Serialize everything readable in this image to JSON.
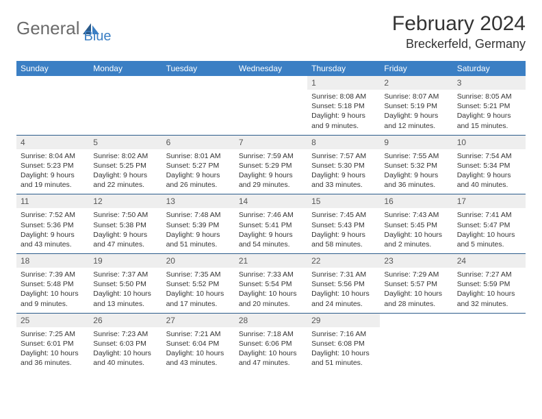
{
  "logo": {
    "part1": "General",
    "part2": "Blue"
  },
  "title": "February 2024",
  "location": "Breckerfeld, Germany",
  "colors": {
    "header_bg": "#3b7fc4",
    "header_text": "#ffffff",
    "daynum_bg": "#eeeeee",
    "row_border": "#2a5a8a",
    "body_text": "#333333",
    "logo_gray": "#6b6b6b",
    "logo_blue": "#3b7fc4",
    "page_bg": "#ffffff"
  },
  "typography": {
    "title_fontsize": 30,
    "location_fontsize": 18,
    "weekday_fontsize": 12,
    "daynum_fontsize": 12,
    "body_fontsize": 10.5
  },
  "weekdays": [
    "Sunday",
    "Monday",
    "Tuesday",
    "Wednesday",
    "Thursday",
    "Friday",
    "Saturday"
  ],
  "weeks": [
    [
      {
        "empty": true
      },
      {
        "empty": true
      },
      {
        "empty": true
      },
      {
        "empty": true
      },
      {
        "day": "1",
        "sunrise": "8:08 AM",
        "sunset": "5:18 PM",
        "daylight": "9 hours and 9 minutes."
      },
      {
        "day": "2",
        "sunrise": "8:07 AM",
        "sunset": "5:19 PM",
        "daylight": "9 hours and 12 minutes."
      },
      {
        "day": "3",
        "sunrise": "8:05 AM",
        "sunset": "5:21 PM",
        "daylight": "9 hours and 15 minutes."
      }
    ],
    [
      {
        "day": "4",
        "sunrise": "8:04 AM",
        "sunset": "5:23 PM",
        "daylight": "9 hours and 19 minutes."
      },
      {
        "day": "5",
        "sunrise": "8:02 AM",
        "sunset": "5:25 PM",
        "daylight": "9 hours and 22 minutes."
      },
      {
        "day": "6",
        "sunrise": "8:01 AM",
        "sunset": "5:27 PM",
        "daylight": "9 hours and 26 minutes."
      },
      {
        "day": "7",
        "sunrise": "7:59 AM",
        "sunset": "5:29 PM",
        "daylight": "9 hours and 29 minutes."
      },
      {
        "day": "8",
        "sunrise": "7:57 AM",
        "sunset": "5:30 PM",
        "daylight": "9 hours and 33 minutes."
      },
      {
        "day": "9",
        "sunrise": "7:55 AM",
        "sunset": "5:32 PM",
        "daylight": "9 hours and 36 minutes."
      },
      {
        "day": "10",
        "sunrise": "7:54 AM",
        "sunset": "5:34 PM",
        "daylight": "9 hours and 40 minutes."
      }
    ],
    [
      {
        "day": "11",
        "sunrise": "7:52 AM",
        "sunset": "5:36 PM",
        "daylight": "9 hours and 43 minutes."
      },
      {
        "day": "12",
        "sunrise": "7:50 AM",
        "sunset": "5:38 PM",
        "daylight": "9 hours and 47 minutes."
      },
      {
        "day": "13",
        "sunrise": "7:48 AM",
        "sunset": "5:39 PM",
        "daylight": "9 hours and 51 minutes."
      },
      {
        "day": "14",
        "sunrise": "7:46 AM",
        "sunset": "5:41 PM",
        "daylight": "9 hours and 54 minutes."
      },
      {
        "day": "15",
        "sunrise": "7:45 AM",
        "sunset": "5:43 PM",
        "daylight": "9 hours and 58 minutes."
      },
      {
        "day": "16",
        "sunrise": "7:43 AM",
        "sunset": "5:45 PM",
        "daylight": "10 hours and 2 minutes."
      },
      {
        "day": "17",
        "sunrise": "7:41 AM",
        "sunset": "5:47 PM",
        "daylight": "10 hours and 5 minutes."
      }
    ],
    [
      {
        "day": "18",
        "sunrise": "7:39 AM",
        "sunset": "5:48 PM",
        "daylight": "10 hours and 9 minutes."
      },
      {
        "day": "19",
        "sunrise": "7:37 AM",
        "sunset": "5:50 PM",
        "daylight": "10 hours and 13 minutes."
      },
      {
        "day": "20",
        "sunrise": "7:35 AM",
        "sunset": "5:52 PM",
        "daylight": "10 hours and 17 minutes."
      },
      {
        "day": "21",
        "sunrise": "7:33 AM",
        "sunset": "5:54 PM",
        "daylight": "10 hours and 20 minutes."
      },
      {
        "day": "22",
        "sunrise": "7:31 AM",
        "sunset": "5:56 PM",
        "daylight": "10 hours and 24 minutes."
      },
      {
        "day": "23",
        "sunrise": "7:29 AM",
        "sunset": "5:57 PM",
        "daylight": "10 hours and 28 minutes."
      },
      {
        "day": "24",
        "sunrise": "7:27 AM",
        "sunset": "5:59 PM",
        "daylight": "10 hours and 32 minutes."
      }
    ],
    [
      {
        "day": "25",
        "sunrise": "7:25 AM",
        "sunset": "6:01 PM",
        "daylight": "10 hours and 36 minutes."
      },
      {
        "day": "26",
        "sunrise": "7:23 AM",
        "sunset": "6:03 PM",
        "daylight": "10 hours and 40 minutes."
      },
      {
        "day": "27",
        "sunrise": "7:21 AM",
        "sunset": "6:04 PM",
        "daylight": "10 hours and 43 minutes."
      },
      {
        "day": "28",
        "sunrise": "7:18 AM",
        "sunset": "6:06 PM",
        "daylight": "10 hours and 47 minutes."
      },
      {
        "day": "29",
        "sunrise": "7:16 AM",
        "sunset": "6:08 PM",
        "daylight": "10 hours and 51 minutes."
      },
      {
        "empty": true
      },
      {
        "empty": true
      }
    ]
  ]
}
